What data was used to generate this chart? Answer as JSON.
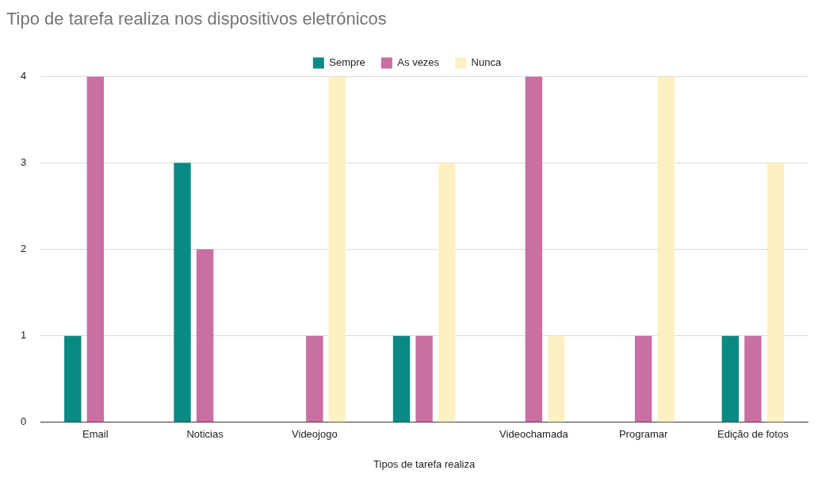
{
  "chart_data": {
    "type": "bar",
    "title": "Tipo de tarefa realiza nos dispositivos eletrónicos",
    "xlabel": "Tipos de tarefa realiza",
    "categories": [
      "Email",
      "Noticias",
      "Videojogo",
      null,
      "Videochamada",
      "Programar",
      "Edição de fotos"
    ],
    "series": [
      {
        "name": "Sempre",
        "color": "#0b8a84",
        "values": [
          1,
          3,
          0,
          1,
          0,
          0,
          1
        ]
      },
      {
        "name": "As vezes",
        "color": "#c96fa1",
        "values": [
          4,
          2,
          1,
          1,
          4,
          1,
          1
        ]
      },
      {
        "name": "Nunca",
        "color": "#fdf1c4",
        "values": [
          0,
          0,
          4,
          3,
          1,
          4,
          3
        ]
      }
    ],
    "ylim": [
      0,
      4
    ],
    "yticks": [
      0,
      1,
      2,
      3,
      4
    ],
    "grid": "y",
    "legend": "top"
  }
}
